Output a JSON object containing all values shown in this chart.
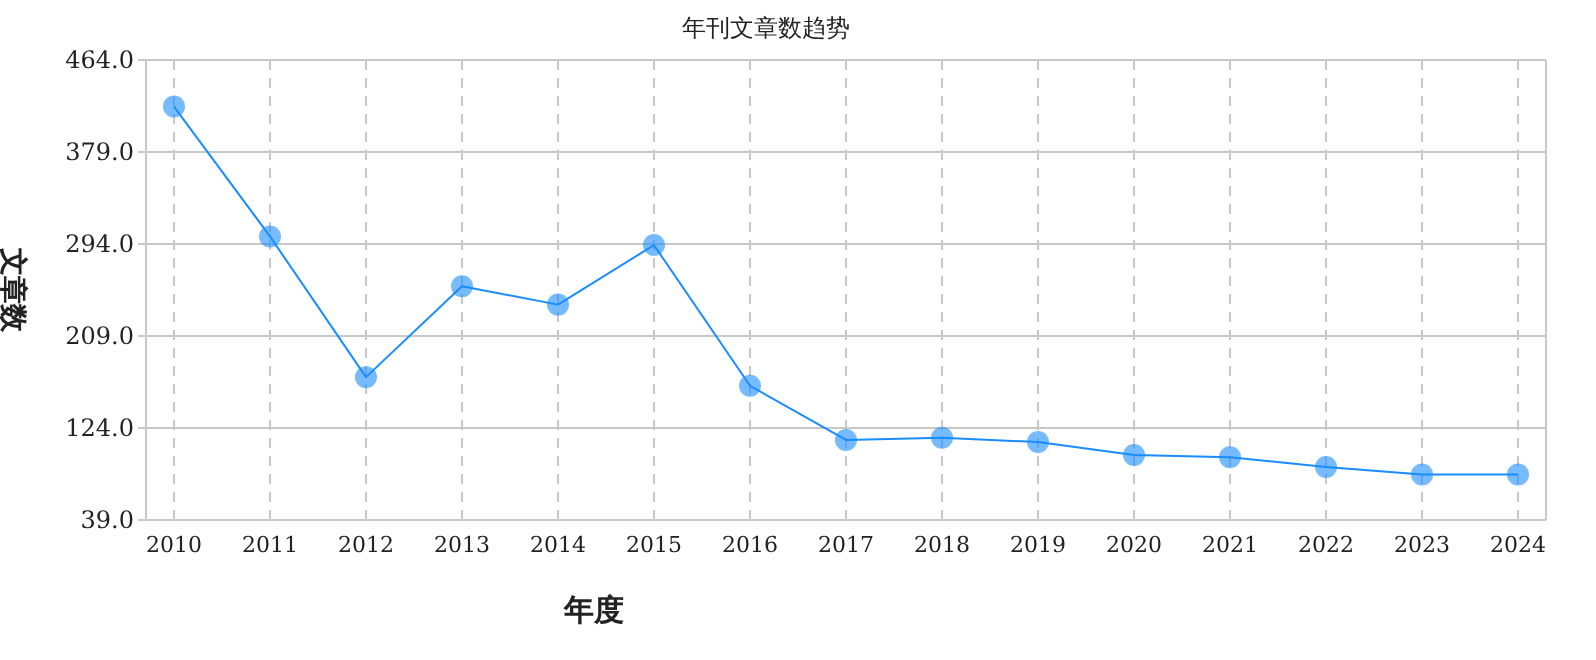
{
  "chart_data": {
    "type": "line",
    "title": "年刊文章数趋势",
    "xlabel": "年度",
    "ylabel": "文章数",
    "categories": [
      "2010",
      "2011",
      "2012",
      "2013",
      "2014",
      "2015",
      "2016",
      "2017",
      "2018",
      "2019",
      "2020",
      "2021",
      "2022",
      "2023",
      "2024"
    ],
    "series": [
      {
        "color": "#1a8cff",
        "values": [
          421,
          301,
          171,
          255,
          238,
          293,
          163,
          113,
          115,
          111,
          99,
          97,
          88,
          81,
          81
        ]
      }
    ],
    "ylim": [
      39,
      464
    ],
    "yticks": [
      {
        "value": 39,
        "label": "39.0"
      },
      {
        "value": 124,
        "label": "124.0"
      },
      {
        "value": 209,
        "label": "209.0"
      },
      {
        "value": 294,
        "label": "294.0"
      },
      {
        "value": 379,
        "label": "379.0"
      },
      {
        "value": 464,
        "label": "464.0"
      }
    ],
    "grid": true,
    "marker": "circle",
    "line_style": "solid"
  }
}
